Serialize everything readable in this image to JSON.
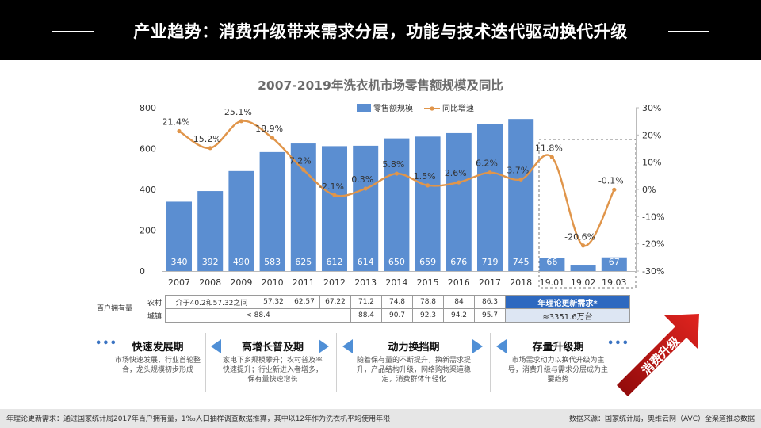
{
  "header": {
    "title": "产业趋势：消费升级带来需求分层，功能与技术迭代驱动换代升级"
  },
  "chart_data": {
    "type": "bar+line",
    "title": "2007-2019年洗衣机市场零售额规模及同比",
    "categories": [
      "2007",
      "2008",
      "2009",
      "2010",
      "2011",
      "2012",
      "2013",
      "2014",
      "2015",
      "2016",
      "2017",
      "2018",
      "19.01",
      "19.02",
      "19.03"
    ],
    "series": [
      {
        "name": "零售额规模",
        "type": "bar",
        "values": [
          340,
          392,
          490,
          583,
          625,
          612,
          614,
          650,
          659,
          676,
          719,
          745,
          66,
          31,
          67
        ]
      },
      {
        "name": "同比增速",
        "type": "line",
        "values": [
          21.4,
          15.2,
          25.1,
          18.9,
          7.2,
          -2.1,
          0.3,
          5.8,
          1.5,
          2.6,
          6.2,
          3.7,
          11.8,
          -20.6,
          -0.1
        ],
        "labels": [
          "21.4%",
          "15.2%",
          "25.1%",
          "18.9%",
          "7.2%",
          "-2.1%",
          "0.3%",
          "5.8%",
          "1.5%",
          "2.6%",
          "6.2%",
          "3.7%",
          "11.8%",
          "-20.6%",
          "-0.1%"
        ]
      }
    ],
    "y_left": {
      "range": [
        0,
        800
      ],
      "ticks": [
        "0",
        "200",
        "400",
        "600",
        "800"
      ]
    },
    "y_right": {
      "range": [
        -30,
        30
      ],
      "ticks": [
        "30%",
        "20%",
        "10%",
        "0%",
        "-10%",
        "-20%",
        "-30%"
      ]
    },
    "legend": [
      "零售额规模",
      "同比增速"
    ],
    "colors": {
      "bar": "#5b8ed1",
      "line": "#e0954a",
      "label": "#ffffff"
    }
  },
  "ownership": {
    "title": "百户拥有量",
    "rural_label": "农村",
    "urban_label": "城镇",
    "rural_range_note": "介于40.2和57.32之间",
    "rural": [
      "57.32",
      "62.57",
      "67.22",
      "71.2",
      "74.8",
      "78.8",
      "84",
      "86.3"
    ],
    "urban_range_note": "< 88.4",
    "urban": [
      "88.4",
      "90.7",
      "92.3",
      "94.2",
      "95.7"
    ],
    "update_label": "年理论更新需求*",
    "update_value": "≈3351.6万台"
  },
  "phases": [
    {
      "title": "快速发展期",
      "desc": "市场快速发展，行业首轮整合，龙头规模初步形成"
    },
    {
      "title": "高增长普及期",
      "desc": "家电下乡规模攀升；农村普及率快速提升；行业新进入者增多，保有量快速增长"
    },
    {
      "title": "动力换挡期",
      "desc": "随着保有量的不断提升，换新需求提升，产品结构升级，网络购物渠道稳定，消费群体年轻化"
    },
    {
      "title": "存量升级期",
      "desc": "市场需求动力以换代升级为主导，消费升级与需求分层成为主要趋势"
    }
  ],
  "upgrade_label": "消费升级",
  "ellipsis": "•••",
  "footer": {
    "note": "年理论更新需求：通过国家统计局2017年百户拥有量，1‰人口抽样调查数据推算，其中以12年作为洗衣机平均使用年限",
    "source": "数据来源：国家统计局，奥维云网（AVC）全渠道推总数据"
  }
}
